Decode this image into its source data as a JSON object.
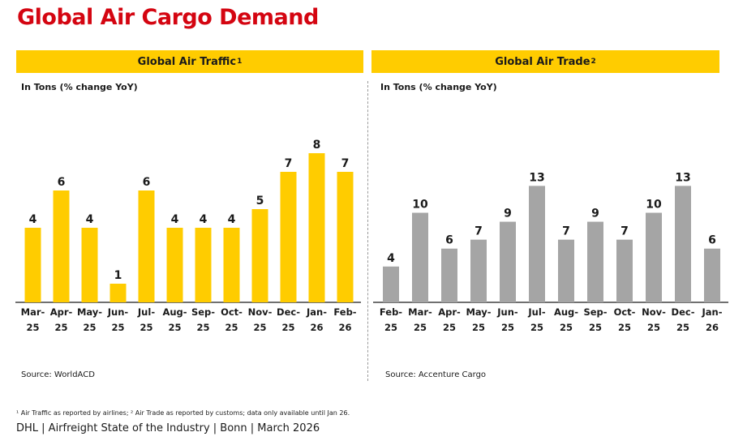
{
  "title": "Global Air Cargo Demand",
  "footnote": "¹ Air Traffic as reported by airlines; ² Air Trade as reported by customs; data only available until Jan 26.",
  "footer": "DHL | Airfreight State of the Industry | Bonn | March 2026",
  "colors": {
    "title": "#d40511",
    "header_band": "#ffcc00",
    "traffic_bar": "#ffcc00",
    "trade_bar": "#a5a5a5"
  },
  "panels": {
    "traffic": {
      "header": "Global Air Traffic",
      "sup": "1",
      "unit": "In Tons (% change YoY)",
      "source": "Source: WorldACD"
    },
    "trade": {
      "header": "Global Air Trade",
      "sup": "2",
      "unit": "In Tons (% change YoY)",
      "source": "Source: Accenture Cargo"
    }
  },
  "chart_data": [
    {
      "type": "bar",
      "title": "Global Air Traffic",
      "ylabel": "In Tons (% change YoY)",
      "categories": [
        "Mar-25",
        "Apr-25",
        "May-25",
        "Jun-25",
        "Jul-25",
        "Aug-25",
        "Sep-25",
        "Oct-25",
        "Nov-25",
        "Dec-25",
        "Jan-26",
        "Feb-26"
      ],
      "values": [
        4,
        6,
        4,
        1,
        6,
        4,
        4,
        4,
        5,
        7,
        8,
        7
      ],
      "ylim": [
        0,
        8
      ],
      "grid": false,
      "data_labels": true,
      "color": "#ffcc00"
    },
    {
      "type": "bar",
      "title": "Global Air Trade",
      "ylabel": "In Tons (% change YoY)",
      "categories": [
        "Feb-25",
        "Mar-25",
        "Apr-25",
        "May-25",
        "Jun-25",
        "Jul-25",
        "Aug-25",
        "Sep-25",
        "Oct-25",
        "Nov-25",
        "Dec-25",
        "Jan-26"
      ],
      "values": [
        4,
        10,
        6,
        7,
        9,
        13,
        7,
        9,
        7,
        10,
        13,
        6
      ],
      "ylim": [
        0,
        13
      ],
      "grid": false,
      "data_labels": true,
      "color": "#a5a5a5"
    }
  ]
}
